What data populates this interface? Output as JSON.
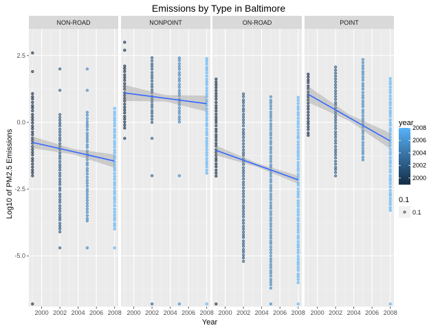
{
  "chart_data": {
    "type": "scatter",
    "title": "Emissions by Type in Baltimore",
    "xlabel": "Year",
    "ylabel": "Log10 of PM2.5 Emissions",
    "x_ticks": [
      2000,
      2002,
      2004,
      2006,
      2008
    ],
    "y_ticks": [
      2.5,
      0.0,
      -2.5,
      -5.0
    ],
    "xlim": [
      1998.6,
      2008.4
    ],
    "ylim": [
      -6.9,
      3.5
    ],
    "years": [
      1999,
      2002,
      2005,
      2008
    ],
    "facets": [
      {
        "label": "NON-ROAD",
        "trend": [
          [
            1999,
            -0.75
          ],
          [
            2008,
            -1.45
          ]
        ],
        "band_halfwidth": [
          0.22,
          0.1,
          0.25
        ],
        "points": {
          "1999": {
            "min": -2.0,
            "max": 1.1,
            "extra": [
              2.6,
              1.9,
              -6.8
            ]
          },
          "2002": {
            "min": -4.1,
            "max": 0.4,
            "extra": [
              2.0,
              1.2,
              -4.7
            ]
          },
          "2005": {
            "min": -3.7,
            "max": 0.4,
            "extra": [
              2.0,
              1.2,
              -4.7
            ]
          },
          "2008": {
            "min": -4.0,
            "max": 0.6,
            "extra": [
              -4.7
            ]
          }
        }
      },
      {
        "label": "NONPOINT",
        "trend": [
          [
            1999,
            1.1
          ],
          [
            2008,
            0.7
          ]
        ],
        "band_halfwidth": [
          0.3,
          0.12,
          0.3
        ],
        "points": {
          "1999": {
            "min": -0.2,
            "max": 2.2,
            "extra": [
              3.0,
              2.7,
              -0.6
            ]
          },
          "2002": {
            "min": 0.0,
            "max": 2.5,
            "extra": [
              -2.0,
              -0.6,
              -6.8
            ]
          },
          "2005": {
            "min": 0.0,
            "max": 2.5,
            "extra": [
              -2.0,
              -6.8
            ]
          },
          "2008": {
            "min": -1.9,
            "max": 2.4,
            "extra": [
              -6.8
            ]
          }
        }
      },
      {
        "label": "ON-ROAD",
        "trend": [
          [
            1999,
            -1.05
          ],
          [
            2008,
            -2.15
          ]
        ],
        "band_halfwidth": [
          0.18,
          0.07,
          0.15
        ],
        "points": {
          "1999": {
            "min": -2.0,
            "max": 1.7,
            "extra": [
              -6.8
            ]
          },
          "2002": {
            "min": -5.2,
            "max": 1.1,
            "extra": []
          },
          "2005": {
            "min": -6.2,
            "max": 1.0,
            "extra": [
              -6.8
            ]
          },
          "2008": {
            "min": -6.0,
            "max": 1.0,
            "extra": [
              -6.8
            ]
          }
        }
      },
      {
        "label": "POINT",
        "trend": [
          [
            1999,
            1.05
          ],
          [
            2008,
            -0.7
          ]
        ],
        "band_halfwidth": [
          0.3,
          0.12,
          0.3
        ],
        "points": {
          "1999": {
            "min": -0.5,
            "max": 1.9,
            "extra": []
          },
          "2002": {
            "min": -2.0,
            "max": 2.1,
            "extra": []
          },
          "2005": {
            "min": -1.4,
            "max": 2.4,
            "extra": []
          },
          "2008": {
            "min": -3.3,
            "max": 1.7,
            "extra": [
              -6.8
            ]
          }
        }
      }
    ],
    "legend": {
      "color_title": "year",
      "color_ticks": [
        2008,
        2006,
        2004,
        2002,
        2000
      ],
      "color_range": [
        1999,
        2008
      ],
      "color_low": "#132B43",
      "color_high": "#56B1F7",
      "alpha_title": "0.1",
      "alpha_label": "0.1",
      "position": "right"
    },
    "trend_color": "#3366FF",
    "band_color": "#999999",
    "panel_bg": "#EBEBEB",
    "strip_bg": "#D9D9D9",
    "grid": true
  }
}
